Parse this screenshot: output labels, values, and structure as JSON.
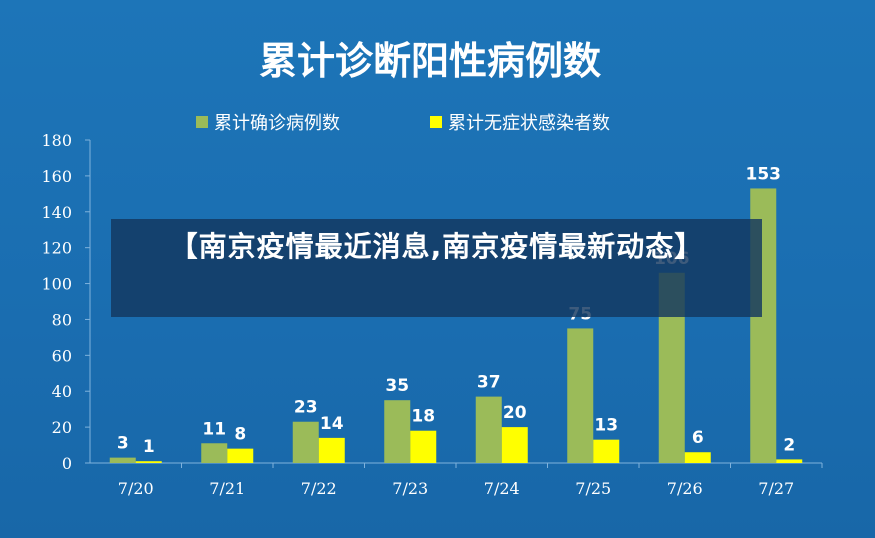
{
  "chart_data": {
    "type": "bar",
    "title": "累计诊断阳性病例数",
    "categories": [
      "7/20",
      "7/21",
      "7/22",
      "7/23",
      "7/24",
      "7/25",
      "7/26",
      "7/27"
    ],
    "series": [
      {
        "name": "累计确诊病例数",
        "color": "#9bbb59",
        "values": [
          3,
          11,
          23,
          35,
          37,
          75,
          106,
          153
        ]
      },
      {
        "name": "累计无症状感染者数",
        "color": "#ffff00",
        "values": [
          1,
          8,
          14,
          18,
          20,
          13,
          6,
          2
        ]
      }
    ],
    "ylim": [
      0,
      180
    ],
    "yticks": [
      0,
      20,
      40,
      60,
      80,
      100,
      120,
      140,
      160,
      180
    ],
    "grid": false,
    "legend": "top"
  },
  "overlay": {
    "headline": "【南京疫情最近消息,南京疫情最新动态】"
  }
}
